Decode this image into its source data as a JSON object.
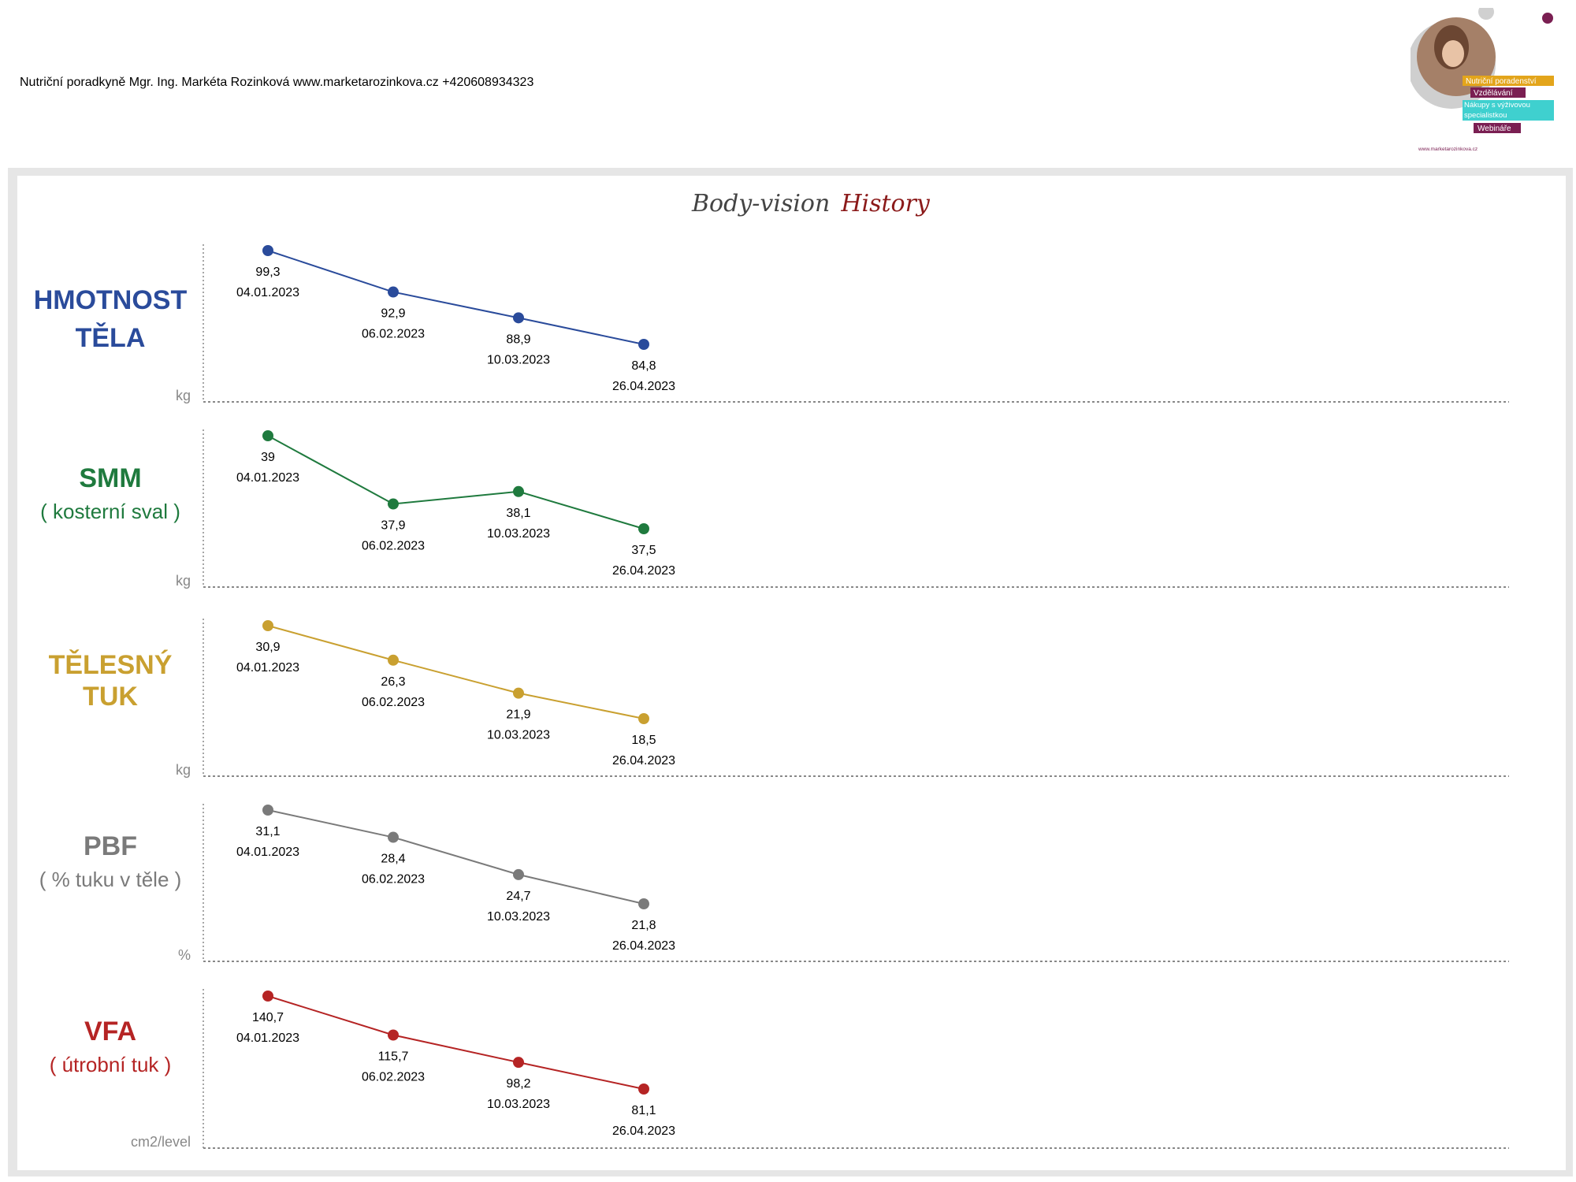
{
  "header": {
    "text": "Nutriční poradkyně Mgr. Ing. Markéta Rozinková www.marketarozinkova.cz +420608934323"
  },
  "logo": {
    "tags": [
      "Nutriční poradenství",
      "Vzdělávání",
      "Nákupy s výživovou specialistkou",
      "Webináře"
    ],
    "url": "www.marketarozinkova.cz"
  },
  "title": {
    "part1": "Body-vision",
    "part2": "History",
    "color1": "#444444",
    "color2": "#8b1a1a"
  },
  "chart_data": [
    {
      "type": "line",
      "title": [
        "HMOTNOST",
        "TĚLA"
      ],
      "ylabel": "kg",
      "color": "#2a4b9b",
      "x": [
        "04.01.2023",
        "06.02.2023",
        "10.03.2023",
        "26.04.2023"
      ],
      "values": [
        99.3,
        92.9,
        88.9,
        84.8
      ],
      "labels": [
        "99,3",
        "92,9",
        "88,9",
        "84,8"
      ]
    },
    {
      "type": "line",
      "title": [
        "SMM",
        "( kosterní sval )"
      ],
      "ylabel": "kg",
      "color": "#1f7a3e",
      "x": [
        "04.01.2023",
        "06.02.2023",
        "10.03.2023",
        "26.04.2023"
      ],
      "values": [
        39,
        37.9,
        38.1,
        37.5
      ],
      "labels": [
        "39",
        "37,9",
        "38,1",
        "37,5"
      ]
    },
    {
      "type": "line",
      "title": [
        "TĚLESNÝ",
        "TUK"
      ],
      "ylabel": "kg",
      "color": "#c9a030",
      "x": [
        "04.01.2023",
        "06.02.2023",
        "10.03.2023",
        "26.04.2023"
      ],
      "values": [
        30.9,
        26.3,
        21.9,
        18.5
      ],
      "labels": [
        "30,9",
        "26,3",
        "21,9",
        "18,5"
      ]
    },
    {
      "type": "line",
      "title": [
        "PBF",
        "( % tuku v těle )"
      ],
      "ylabel": "%",
      "color": "#7a7a7a",
      "x": [
        "04.01.2023",
        "06.02.2023",
        "10.03.2023",
        "26.04.2023"
      ],
      "values": [
        31.1,
        28.4,
        24.7,
        21.8
      ],
      "labels": [
        "31,1",
        "28,4",
        "24,7",
        "21,8"
      ]
    },
    {
      "type": "line",
      "title": [
        "VFA",
        "( útrobní tuk )"
      ],
      "ylabel": "cm2/level",
      "color": "#b52424",
      "x": [
        "04.01.2023",
        "06.02.2023",
        "10.03.2023",
        "26.04.2023"
      ],
      "values": [
        140.7,
        115.7,
        98.2,
        81.1
      ],
      "labels": [
        "140,7",
        "115,7",
        "98,2",
        "81,1"
      ]
    }
  ]
}
